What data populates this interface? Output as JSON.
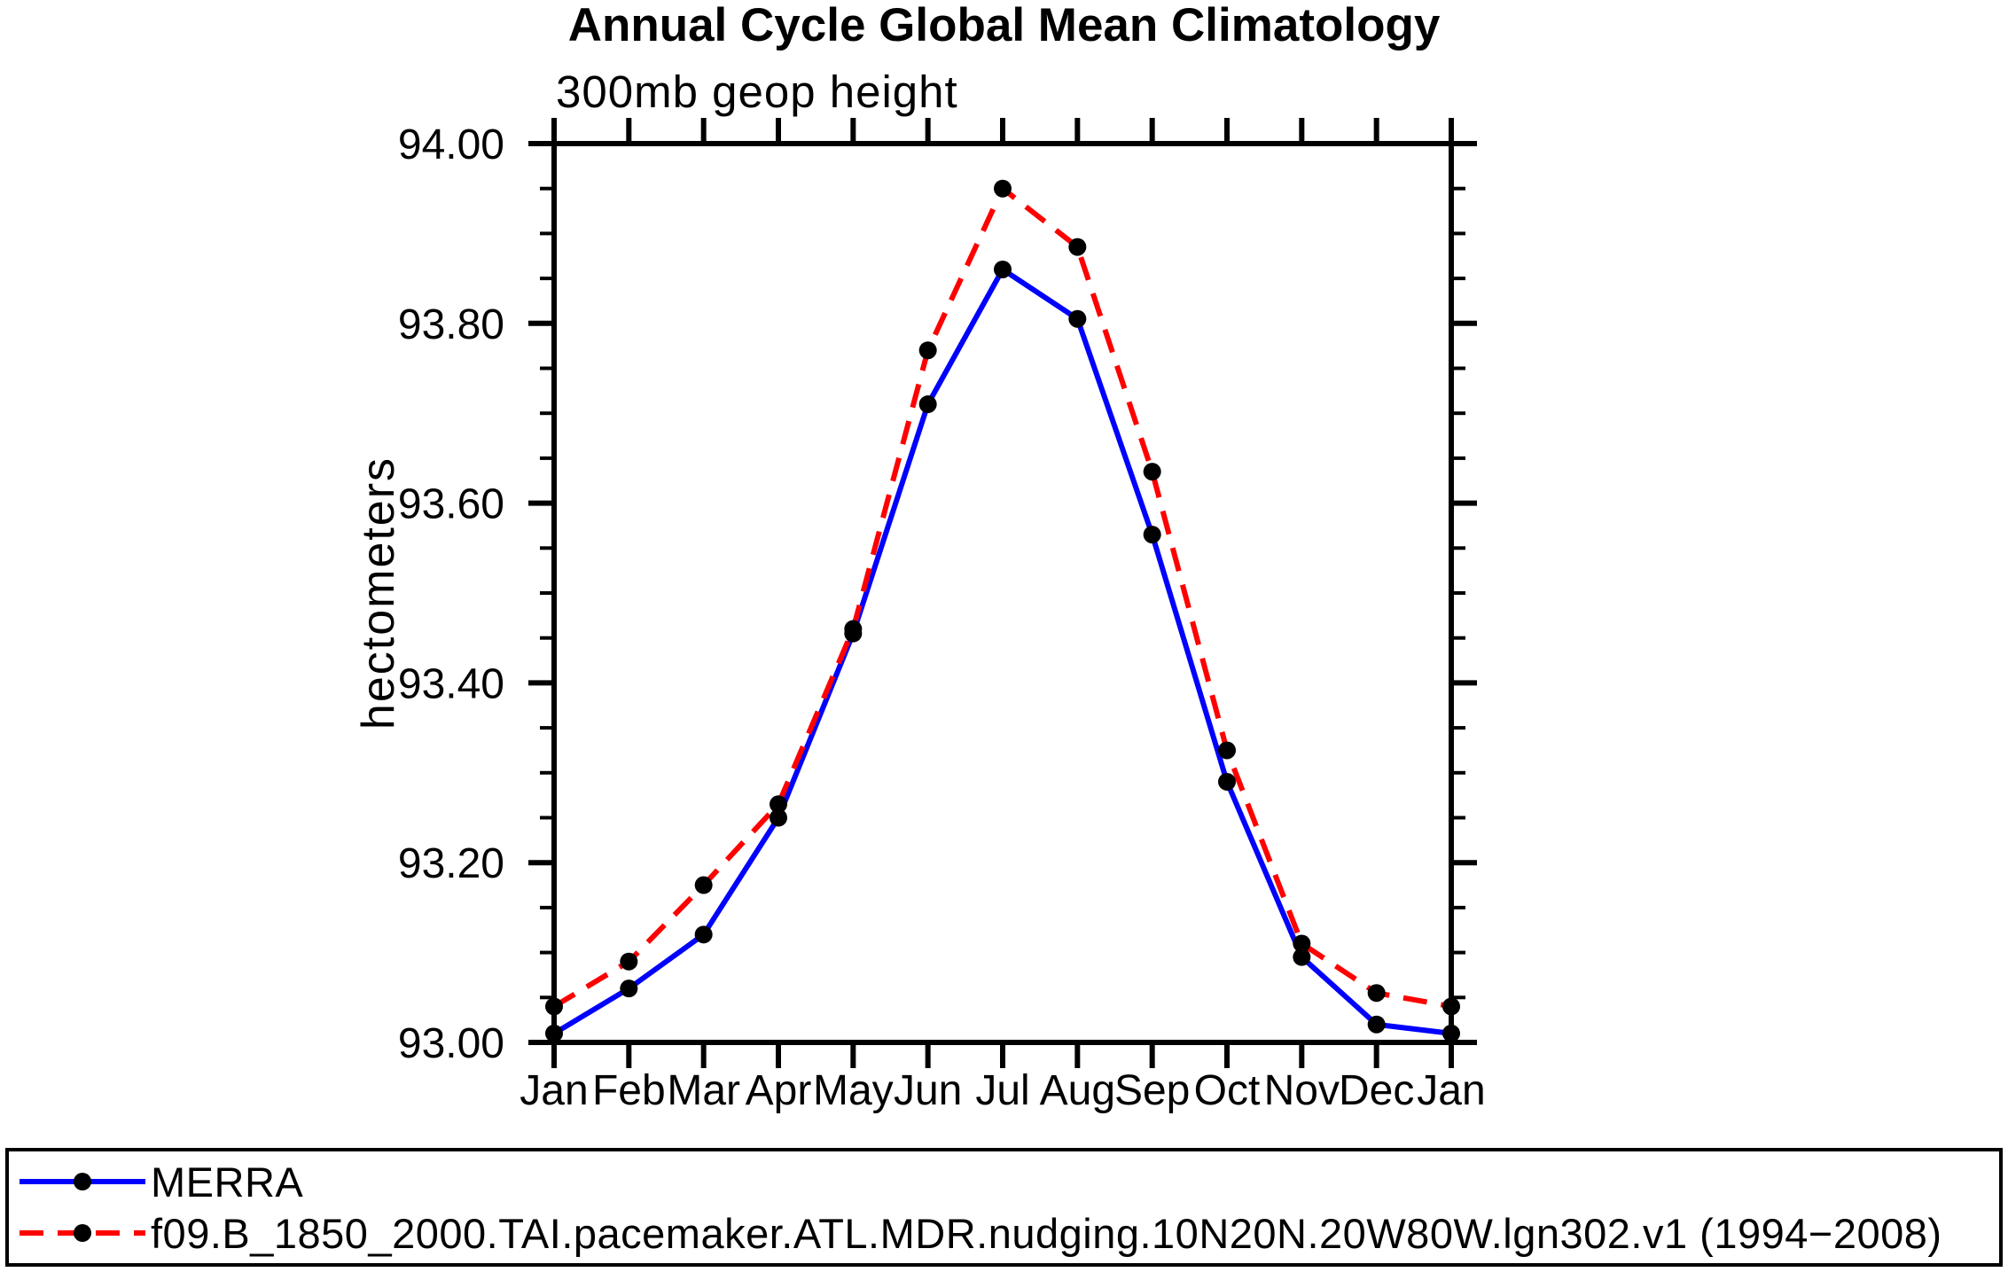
{
  "title": "Annual Cycle Global Mean Climatology",
  "subtitle": "300mb geop height",
  "chart_data": {
    "type": "line",
    "x_categories": [
      "Jan",
      "Feb",
      "Mar",
      "Apr",
      "May",
      "Jun",
      "Jul",
      "Aug",
      "Sep",
      "Oct",
      "Nov",
      "Dec",
      "Jan"
    ],
    "series": [
      {
        "name": "MERRA",
        "line_color": "#0000ff",
        "line_style": "solid",
        "marker": "circle",
        "marker_color": "#000000",
        "values": [
          93.01,
          93.06,
          93.12,
          93.25,
          93.455,
          93.71,
          93.86,
          93.805,
          93.565,
          93.29,
          93.095,
          93.02,
          93.01
        ]
      },
      {
        "name": "f09.B_1850_2000.TAI.pacemaker.ATL.MDR.nudging.10N20N.20W80W.lgn302.v1 (1994−2008)",
        "line_color": "#ff0000",
        "line_style": "dashed",
        "marker": "circle",
        "marker_color": "#000000",
        "values": [
          93.04,
          93.09,
          93.175,
          93.265,
          93.46,
          93.77,
          93.95,
          93.885,
          93.635,
          93.325,
          93.11,
          93.055,
          93.04
        ]
      }
    ],
    "ylabel": "hectometers",
    "ylim": [
      93.0,
      94.0
    ],
    "y_major_ticks": [
      {
        "value": 93.0,
        "label": "93.00"
      },
      {
        "value": 93.2,
        "label": "93.20"
      },
      {
        "value": 93.4,
        "label": "93.40"
      },
      {
        "value": 93.6,
        "label": "93.60"
      },
      {
        "value": 93.8,
        "label": "93.80"
      },
      {
        "value": 94.0,
        "label": "94.00"
      }
    ],
    "y_minor_step": 0.05,
    "grid": false,
    "legend_position": "bottom",
    "axis_color": "#000000"
  }
}
